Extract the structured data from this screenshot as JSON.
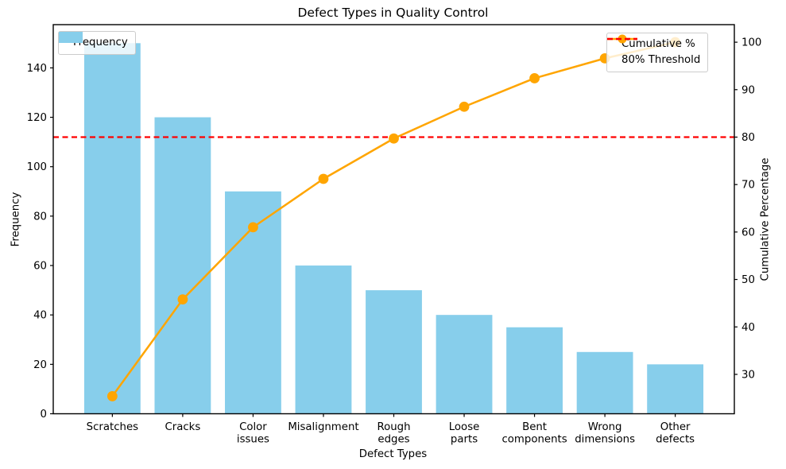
{
  "chart_data": {
    "type": "bar",
    "subtype": "pareto (bar + cumulative line, dual y-axis)",
    "title": "Defect Types in Quality Control",
    "xlabel": "Defect Types",
    "ylabel_left": "Frequency",
    "ylabel_right": "Cumulative Percentage",
    "categories": [
      "Scratches",
      "Cracks",
      "Color\nissues",
      "Misalignment",
      "Rough\nedges",
      "Loose\nparts",
      "Bent\ncomponents",
      "Wrong\ndimensions",
      "Other\ndefects"
    ],
    "series": [
      {
        "name": "Frequency",
        "kind": "bar",
        "axis": "left",
        "color": "#87CEEB",
        "values": [
          150,
          120,
          90,
          60,
          50,
          40,
          35,
          25,
          20
        ]
      },
      {
        "name": "Cumulative %",
        "kind": "line",
        "axis": "right",
        "color": "#FFA500",
        "marker": "circle",
        "values": [
          25.4,
          45.8,
          61.0,
          71.2,
          79.7,
          86.4,
          92.4,
          96.6,
          100.0
        ]
      }
    ],
    "threshold_line": {
      "label": "80% Threshold",
      "value": 80,
      "axis": "right",
      "color": "#FF0000",
      "style": "dashed"
    },
    "axes": {
      "x": {
        "lim": [
          -0.84,
          8.84
        ],
        "bar_width": 0.8
      },
      "left": {
        "lim": [
          0,
          157.5
        ],
        "ticks": [
          0,
          20,
          40,
          60,
          80,
          100,
          120,
          140
        ]
      },
      "right": {
        "lim": [
          21.7,
          103.7
        ],
        "ticks": [
          30,
          40,
          50,
          60,
          70,
          80,
          90,
          100
        ]
      }
    },
    "grid": false,
    "legends": {
      "frequency": {
        "position": "upper left",
        "entries": [
          {
            "label": "Frequency",
            "swatch": "patch",
            "color": "#87CEEB"
          }
        ]
      },
      "cumulative": {
        "position": "upper right",
        "entries": [
          {
            "label": "Cumulative %",
            "swatch": "line-marker",
            "color": "#FFA500"
          },
          {
            "label": "80% Threshold",
            "swatch": "dashed",
            "color": "#FF0000"
          }
        ]
      }
    }
  }
}
